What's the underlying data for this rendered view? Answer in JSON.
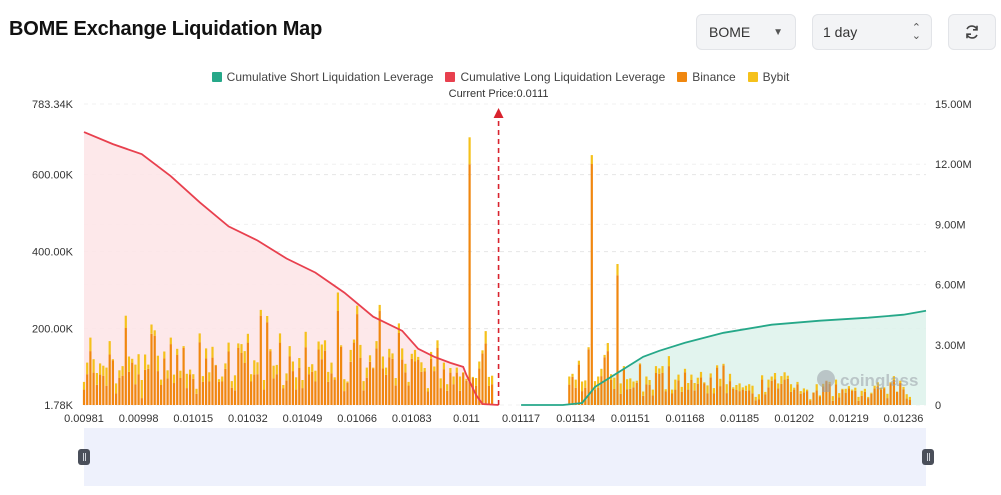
{
  "header": {
    "title": "BOME Exchange Liquidation Map"
  },
  "controls": {
    "symbol": "BOME",
    "range": "1 day"
  },
  "icons": {
    "dropdown": "caret-down-icon",
    "stepper": "up-down-icon",
    "refresh": "refresh-icon"
  },
  "legend": [
    {
      "label": "Cumulative Short Liquidation Leverage",
      "color": "#26a889"
    },
    {
      "label": "Cumulative Long Liquidation Leverage",
      "color": "#e8404e"
    },
    {
      "label": "Binance",
      "color": "#f0870f"
    },
    {
      "label": "Bybit",
      "color": "#f5c11b"
    }
  ],
  "watermark": "coinglass",
  "chart_data": {
    "type": "bar",
    "current_price_label": "Current Price:0.0111",
    "current_price": 0.0111,
    "x_ticks": [
      "0.00981",
      "0.00998",
      "0.01015",
      "0.01032",
      "0.01049",
      "0.01066",
      "0.01083",
      "0.011",
      "0.01117",
      "0.01134",
      "0.01151",
      "0.01168",
      "0.01185",
      "0.01202",
      "0.01219",
      "0.01236"
    ],
    "y_left_ticks": [
      "1.78K",
      "200.00K",
      "400.00K",
      "600.00K",
      "783.34K"
    ],
    "y_left_values": [
      1780,
      200000,
      400000,
      600000,
      783340
    ],
    "y_left_range": [
      1780,
      783340
    ],
    "y_right_ticks": [
      "0",
      "3.00M",
      "6.00M",
      "9.00M",
      "12.00M",
      "15.00M"
    ],
    "y_right_range": [
      0,
      15000000
    ],
    "x_range": [
      0.00981,
      0.01243
    ],
    "grid": "horizontal dashed",
    "legend_position": "top-center",
    "series": [
      {
        "name": "Cumulative Long Liquidation Leverage",
        "axis": "right",
        "x": [
          0.00981,
          0.0099,
          0.00999,
          0.01008,
          0.01017,
          0.01026,
          0.01035,
          0.01044,
          0.01053,
          0.01062,
          0.01071,
          0.0108,
          0.01085,
          0.0109,
          0.01095,
          0.01099,
          0.011,
          0.01103,
          0.01105,
          0.0111
        ],
        "values": [
          13.6,
          13.0,
          12.5,
          11.4,
          10.1,
          8.9,
          8.2,
          7.3,
          6.6,
          5.6,
          4.4,
          3.7,
          2.8,
          2.4,
          2.1,
          1.9,
          1.5,
          0.5,
          0.05,
          0
        ]
      },
      {
        "name": "Cumulative Short Liquidation Leverage",
        "axis": "right",
        "x": [
          0.01117,
          0.0113,
          0.01136,
          0.0114,
          0.01145,
          0.0115,
          0.01155,
          0.0116,
          0.01168,
          0.0118,
          0.01195,
          0.0121,
          0.01225,
          0.01236,
          0.01243
        ],
        "values": [
          0,
          0,
          0.1,
          0.9,
          1.4,
          1.9,
          2.4,
          2.7,
          3.1,
          3.6,
          4.0,
          4.2,
          4.35,
          4.5,
          4.7
        ]
      }
    ],
    "bars": {
      "x": [
        0.00981,
        0.00982,
        0.00983,
        0.00984,
        0.00985,
        0.00986,
        0.00987,
        0.00988,
        0.00989,
        0.0099,
        0.00991,
        0.00992,
        0.00993,
        0.00994,
        0.00995,
        0.00996,
        0.00997,
        0.00998,
        0.00999,
        0.01,
        0.01001,
        0.01002,
        0.01003,
        0.01004,
        0.01005,
        0.01006,
        0.01007,
        0.01008,
        0.01009,
        0.0101,
        0.01011,
        0.01012,
        0.01013,
        0.01014,
        0.01015,
        0.01016,
        0.01017,
        0.01018,
        0.01019,
        0.0102,
        0.01021,
        0.01022,
        0.01023,
        0.01024,
        0.01025,
        0.01026,
        0.01027,
        0.01028,
        0.01029,
        0.0103,
        0.01031,
        0.01032,
        0.01033,
        0.01034,
        0.01035,
        0.01036,
        0.01037,
        0.01038,
        0.01039,
        0.0104,
        0.01041,
        0.01042,
        0.01043,
        0.01044,
        0.01045,
        0.01046,
        0.01047,
        0.01048,
        0.01049,
        0.0105,
        0.01051,
        0.01052,
        0.01053,
        0.01054,
        0.01055,
        0.01056,
        0.01057,
        0.01058,
        0.01059,
        0.0106,
        0.01061,
        0.01062,
        0.01063,
        0.01064,
        0.01065,
        0.01066,
        0.01067,
        0.01068,
        0.01069,
        0.0107,
        0.01071,
        0.01072,
        0.01073,
        0.01074,
        0.01075,
        0.01076,
        0.01077,
        0.01078,
        0.01079,
        0.0108,
        0.01081,
        0.01082,
        0.01083,
        0.01084,
        0.01085,
        0.01086,
        0.01087,
        0.01088,
        0.01089,
        0.0109,
        0.01091,
        0.01092,
        0.01093,
        0.01094,
        0.01095,
        0.01096,
        0.01097,
        0.01098,
        0.01099,
        0.011,
        0.01101,
        0.01102,
        0.01103,
        0.01104,
        0.01105,
        0.01106,
        0.01107,
        0.01108,
        0.01132,
        0.01133,
        0.01134,
        0.01135,
        0.01136,
        0.01137,
        0.01138,
        0.01139,
        0.0114,
        0.01141,
        0.01142,
        0.01143,
        0.01144,
        0.01145,
        0.01146,
        0.01147,
        0.01148,
        0.01149,
        0.0115,
        0.01151,
        0.01152,
        0.01153,
        0.01154,
        0.01155,
        0.01156,
        0.01157,
        0.01158,
        0.01159,
        0.0116,
        0.01161,
        0.01162,
        0.01163,
        0.01164,
        0.01165,
        0.01166,
        0.01167,
        0.01168,
        0.01169,
        0.0117,
        0.01171,
        0.01172,
        0.01173,
        0.01174,
        0.01175,
        0.01176,
        0.01177,
        0.01178,
        0.01179,
        0.0118,
        0.01181,
        0.01182,
        0.01183,
        0.01184,
        0.01185,
        0.01186,
        0.01187,
        0.01188,
        0.01189,
        0.0119,
        0.01191,
        0.01192,
        0.01193,
        0.01194,
        0.01195,
        0.01196,
        0.01197,
        0.01198,
        0.01199,
        0.012,
        0.01201,
        0.01202,
        0.01203,
        0.01204,
        0.01205,
        0.01206,
        0.01207,
        0.01208,
        0.01209,
        0.0121,
        0.01211,
        0.01212,
        0.01213,
        0.01214,
        0.01215,
        0.01216,
        0.01217,
        0.01218,
        0.01219,
        0.0122,
        0.01221,
        0.01222,
        0.01223,
        0.01224,
        0.01225,
        0.01226,
        0.01227,
        0.01228,
        0.01229,
        0.0123,
        0.01231,
        0.01232,
        0.01233,
        0.01234,
        0.01235,
        0.01236,
        0.01237,
        0.01238,
        0.01239,
        0.0124,
        0.01241,
        0.01242
      ],
      "binance": [
        40000,
        80000,
        140000,
        84000,
        52000,
        79000,
        76000,
        50000,
        131000,
        116000,
        30000,
        70000,
        76000,
        200000,
        86000,
        110000,
        54000,
        80000,
        18000,
        91000,
        94000,
        185000,
        180000,
        88000,
        52000,
        121000,
        69000,
        158000,
        57000,
        130000,
        70000,
        148000,
        44000,
        80000,
        68000,
        29000,
        163000,
        60000,
        121000,
        61000,
        123000,
        103000,
        60000,
        61000,
        94000,
        139000,
        45000,
        38000,
        148000,
        135000,
        109000,
        162000,
        61000,
        79000,
        80000,
        232000,
        40000,
        215000,
        140000,
        69000,
        80000,
        162000,
        43000,
        64000,
        126000,
        88000,
        40000,
        96000,
        44000,
        150000,
        80000,
        86000,
        61000,
        144000,
        119000,
        141000,
        60000,
        82000,
        66000,
        244000,
        151000,
        36000,
        57000,
        112000,
        162000,
        236000,
        122000,
        38000,
        71000,
        112000,
        95000,
        147000,
        244000,
        95000,
        78000,
        124000,
        120000,
        51000,
        187000,
        118000,
        85000,
        51000,
        120000,
        113000,
        117000,
        86000,
        87000,
        35000,
        120000,
        88000,
        148000,
        44000,
        93000,
        37000,
        84000,
        54000,
        84000,
        37000,
        83000,
        63000,
        625000,
        70000,
        50000,
        95000,
        134000,
        160000,
        50000,
        54000,
        53000,
        73000,
        45000,
        105000,
        36000,
        45000,
        145000,
        626000,
        40000,
        45000,
        75000,
        124000,
        140000,
        65000,
        42000,
        337000,
        29000,
        94000,
        41000,
        42000,
        46000,
        58000,
        106000,
        24000,
        54000,
        52000,
        25000,
        83000,
        81000,
        83000,
        35000,
        101000,
        30000,
        40000,
        64000,
        34000,
        85000,
        40000,
        65000,
        38000,
        55000,
        72000,
        56000,
        30000,
        72000,
        30000,
        97000,
        49000,
        103000,
        31000,
        62000,
        42000,
        39000,
        36000,
        40000,
        37000,
        38000,
        30000,
        12000,
        15000,
        66000,
        28000,
        46000,
        63000,
        67000,
        43000,
        55000,
        66000,
        68000,
        34000,
        40000,
        54000,
        29000,
        33000,
        36000,
        12000,
        32000,
        38000,
        22000,
        48000,
        62000,
        55000,
        11000,
        54000,
        20000,
        40000,
        32000,
        43000,
        37000,
        37000,
        11000,
        24000,
        34000,
        18000,
        29000,
        43000,
        49000,
        40000,
        43000,
        18000,
        56000,
        65000,
        34000,
        57000,
        41000,
        17000,
        13000
      ],
      "bybit": [
        20000,
        30000,
        35000,
        35000,
        31000,
        29000,
        26000,
        47000,
        35000,
        3000,
        26000,
        20000,
        25000,
        32000,
        40000,
        10000,
        51000,
        52000,
        47000,
        40000,
        11000,
        24000,
        14000,
        40000,
        14000,
        18000,
        21000,
        17000,
        22000,
        16000,
        19000,
        5000,
        37000,
        12000,
        12000,
        13000,
        23000,
        15000,
        26000,
        24000,
        28000,
        1000,
        7000,
        13000,
        14000,
        23000,
        17000,
        39000,
        12000,
        23000,
        31000,
        23000,
        19000,
        37000,
        31000,
        15000,
        25000,
        16000,
        5000,
        33000,
        24000,
        24000,
        9000,
        18000,
        27000,
        25000,
        32000,
        26000,
        21000,
        40000,
        19000,
        20000,
        28000,
        21000,
        38000,
        27000,
        26000,
        28000,
        6000,
        48000,
        4000,
        31000,
        4000,
        31000,
        8000,
        22000,
        34000,
        24000,
        26000,
        17000,
        2000,
        19000,
        16000,
        31000,
        19000,
        22000,
        14000,
        19000,
        25000,
        29000,
        22000,
        9000,
        13000,
        30000,
        8000,
        25000,
        9000,
        9000,
        18000,
        12000,
        20000,
        25000,
        17000,
        17000,
        12000,
        20000,
        13000,
        37000,
        2000,
        5000,
        70000,
        3000,
        20000,
        18000,
        8000,
        32000,
        23000,
        22000,
        21000,
        8000,
        21000,
        10000,
        25000,
        19000,
        5000,
        23000,
        22000,
        29000,
        19000,
        6000,
        21000,
        15000,
        29000,
        29000,
        27000,
        7000,
        26000,
        27000,
        15000,
        5000,
        2000,
        11000,
        20000,
        13000,
        15000,
        18000,
        14000,
        18000,
        6000,
        26000,
        10000,
        26000,
        15000,
        13000,
        9000,
        17000,
        14000,
        19000,
        16000,
        14000,
        3000,
        21000,
        10000,
        14000,
        6000,
        19000,
        4000,
        23000,
        19000,
        4000,
        13000,
        20000,
        6000,
        13000,
        16000,
        20000,
        9000,
        13000,
        11000,
        6000,
        20000,
        11000,
        16000,
        13000,
        20000,
        19000,
        8000,
        20000,
        5000,
        6000,
        7000,
        10000,
        4000,
        3000,
        1000,
        16000,
        3000,
        7000,
        1000,
        5000,
        12000,
        12000,
        11000,
        2000,
        10000,
        6000,
        3000,
        8000,
        10000,
        13000,
        8000,
        3000,
        3000,
        7000,
        10000,
        5000,
        3000,
        11000,
        3000,
        10000,
        1000,
        6000,
        6000,
        11000,
        8000,
        4000,
        12000,
        12000,
        6000
      ]
    }
  }
}
